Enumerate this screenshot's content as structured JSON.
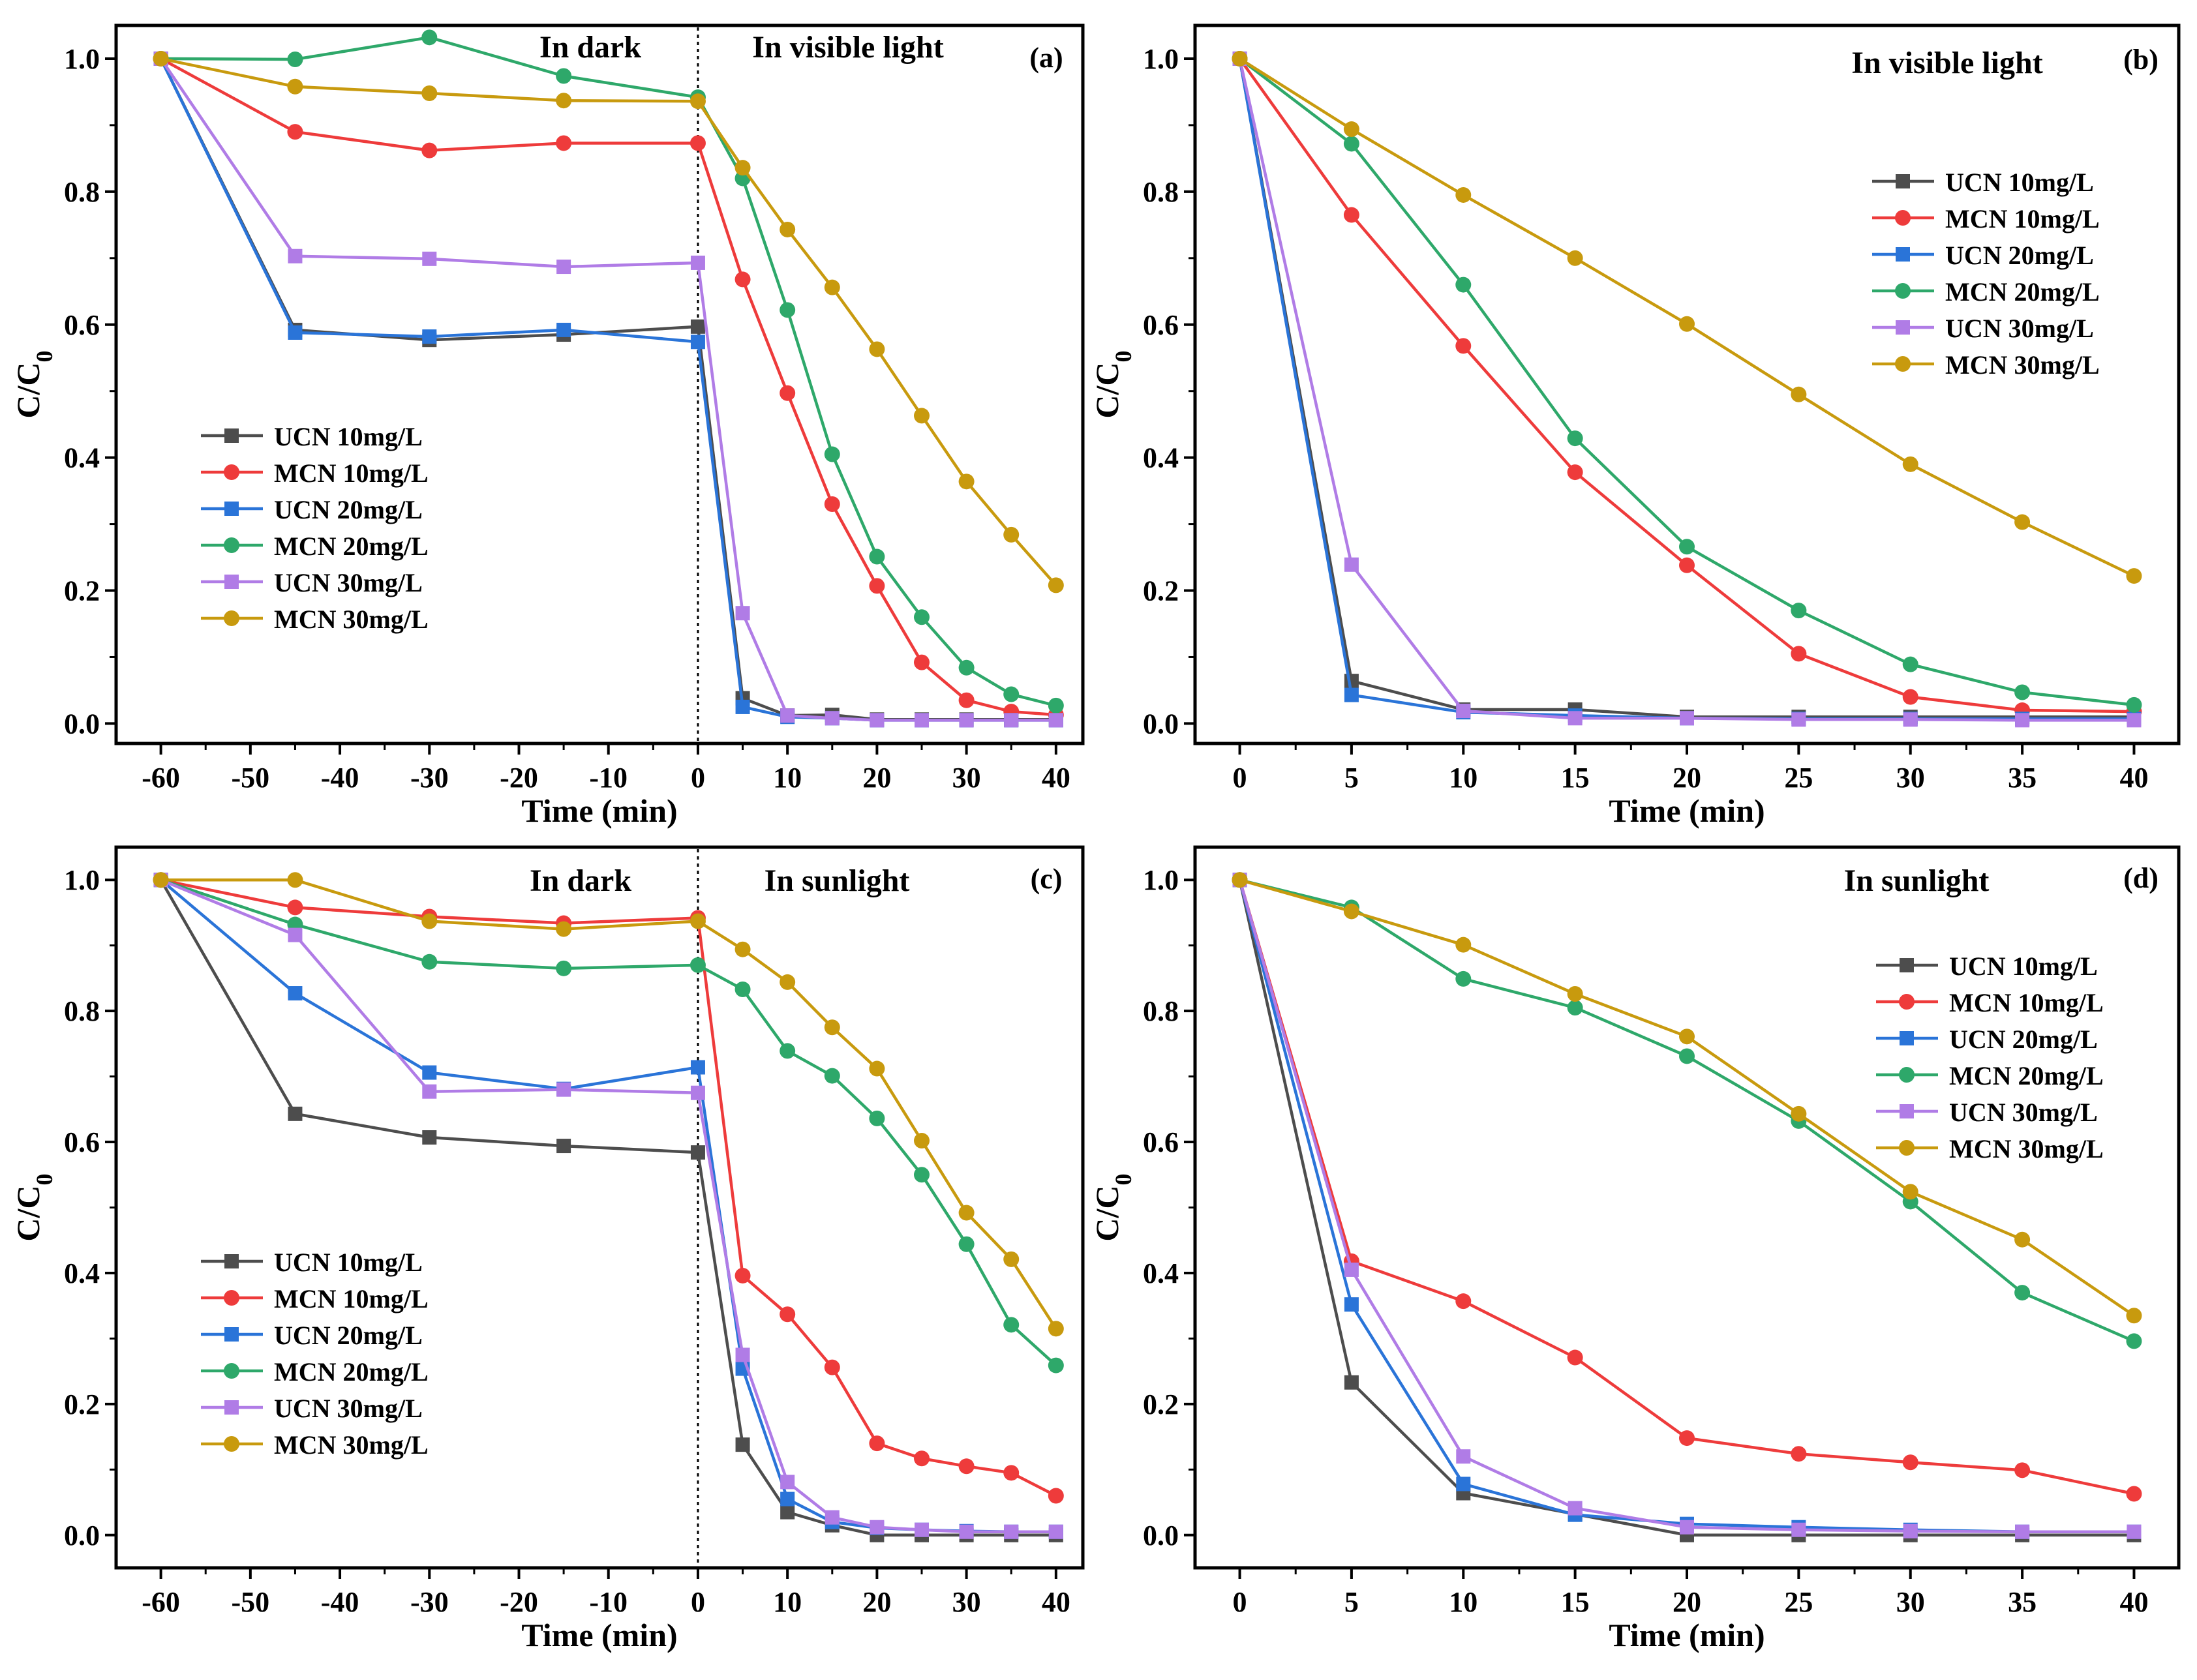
{
  "chart_data": [
    {
      "panel": "(a)",
      "type": "line",
      "x": [
        -60,
        -45,
        -30,
        -15,
        0,
        5,
        10,
        15,
        20,
        25,
        30,
        35,
        40
      ],
      "xlabel": "Time (min)",
      "ylabel_main": "C/C",
      "ylabel_sub": "0",
      "xlim": [
        -65,
        43
      ],
      "ylim": [
        -0.03,
        1.05
      ],
      "xticks": [
        -60,
        -50,
        -40,
        -30,
        -20,
        -10,
        0,
        10,
        20,
        30,
        40
      ],
      "yticks": [
        0.0,
        0.2,
        0.4,
        0.6,
        0.8,
        1.0
      ],
      "xtick_labels": [
        "-60",
        "-50",
        "-40",
        "-30",
        "-20",
        "-10",
        "0",
        "10",
        "20",
        "30",
        "40"
      ],
      "ytick_labels": [
        "0.0",
        "0.2",
        "0.4",
        "0.6",
        "0.8",
        "1.0"
      ],
      "annotations": [
        "In dark",
        "In visible light"
      ],
      "dashed_line_x": 0,
      "legend_position": "center-left",
      "series": [
        {
          "name": "UCN 10mg/L",
          "color": "#4d4d4d",
          "marker": "square",
          "values": [
            1.0,
            0.592,
            0.577,
            0.585,
            0.597,
            0.038,
            0.012,
            0.013,
            0.006,
            0.006,
            0.006,
            0.006,
            0.006
          ]
        },
        {
          "name": "MCN 10mg/L",
          "color": "#ee3b3b",
          "marker": "circle",
          "values": [
            1.0,
            0.89,
            0.862,
            0.873,
            0.873,
            0.668,
            0.497,
            0.33,
            0.207,
            0.092,
            0.035,
            0.018,
            0.013
          ]
        },
        {
          "name": "UCN 20mg/L",
          "color": "#2a74d8",
          "marker": "square",
          "values": [
            1.0,
            0.588,
            0.582,
            0.592,
            0.574,
            0.025,
            0.01,
            0.008,
            0.005,
            0.005,
            0.005,
            0.005,
            0.005
          ]
        },
        {
          "name": "MCN 20mg/L",
          "color": "#2ea86a",
          "marker": "circle",
          "values": [
            1.0,
            0.999,
            1.032,
            0.974,
            0.942,
            0.82,
            0.622,
            0.405,
            0.251,
            0.16,
            0.084,
            0.044,
            0.027
          ]
        },
        {
          "name": "UCN 30mg/L",
          "color": "#b07ce6",
          "marker": "square",
          "values": [
            1.0,
            0.703,
            0.699,
            0.687,
            0.693,
            0.166,
            0.012,
            0.008,
            0.005,
            0.005,
            0.005,
            0.005,
            0.005
          ]
        },
        {
          "name": "MCN 30mg/L",
          "color": "#c89a0e",
          "marker": "circle",
          "values": [
            1.0,
            0.958,
            0.948,
            0.937,
            0.936,
            0.836,
            0.743,
            0.656,
            0.563,
            0.463,
            0.364,
            0.284,
            0.208
          ]
        }
      ]
    },
    {
      "panel": "(b)",
      "type": "line",
      "x": [
        0,
        5,
        10,
        15,
        20,
        25,
        30,
        35,
        40
      ],
      "xlabel": "Time (min)",
      "ylabel_main": "C/C",
      "ylabel_sub": "0",
      "xlim": [
        -2,
        42
      ],
      "ylim": [
        -0.03,
        1.05
      ],
      "xticks": [
        0,
        5,
        10,
        15,
        20,
        25,
        30,
        35,
        40
      ],
      "yticks": [
        0.0,
        0.2,
        0.4,
        0.6,
        0.8,
        1.0
      ],
      "xtick_labels": [
        "0",
        "5",
        "10",
        "15",
        "20",
        "25",
        "30",
        "35",
        "40"
      ],
      "ytick_labels": [
        "0.0",
        "0.2",
        "0.4",
        "0.6",
        "0.8",
        "1.0"
      ],
      "annotations": [
        "In visible light"
      ],
      "legend_position": "top-right",
      "series": [
        {
          "name": "UCN 10mg/L",
          "color": "#4d4d4d",
          "marker": "square",
          "values": [
            1.0,
            0.064,
            0.021,
            0.021,
            0.01,
            0.01,
            0.01,
            0.01,
            0.01
          ]
        },
        {
          "name": "MCN 10mg/L",
          "color": "#ee3b3b",
          "marker": "circle",
          "values": [
            1.0,
            0.765,
            0.568,
            0.378,
            0.238,
            0.105,
            0.04,
            0.02,
            0.018
          ]
        },
        {
          "name": "UCN 20mg/L",
          "color": "#2a74d8",
          "marker": "square",
          "values": [
            1.0,
            0.043,
            0.017,
            0.012,
            0.008,
            0.007,
            0.007,
            0.007,
            0.007
          ]
        },
        {
          "name": "MCN 20mg/L",
          "color": "#2ea86a",
          "marker": "circle",
          "values": [
            1.0,
            0.872,
            0.66,
            0.429,
            0.266,
            0.17,
            0.089,
            0.047,
            0.028
          ]
        },
        {
          "name": "UCN 30mg/L",
          "color": "#b07ce6",
          "marker": "square",
          "values": [
            1.0,
            0.239,
            0.019,
            0.008,
            0.008,
            0.006,
            0.006,
            0.005,
            0.005
          ]
        },
        {
          "name": "MCN 30mg/L",
          "color": "#c89a0e",
          "marker": "circle",
          "values": [
            1.0,
            0.894,
            0.795,
            0.7,
            0.601,
            0.495,
            0.39,
            0.303,
            0.222
          ]
        }
      ]
    },
    {
      "panel": "(c)",
      "type": "line",
      "x": [
        -60,
        -45,
        -30,
        -15,
        0,
        5,
        10,
        15,
        20,
        25,
        30,
        35,
        40
      ],
      "xlabel": "Time (min)",
      "ylabel_main": "C/C",
      "ylabel_sub": "0",
      "xlim": [
        -65,
        43
      ],
      "ylim": [
        -0.05,
        1.05
      ],
      "xticks": [
        -60,
        -50,
        -40,
        -30,
        -20,
        -10,
        0,
        10,
        20,
        30,
        40
      ],
      "yticks": [
        0.0,
        0.2,
        0.4,
        0.6,
        0.8,
        1.0
      ],
      "xtick_labels": [
        "-60",
        "-50",
        "-40",
        "-30",
        "-20",
        "-10",
        "0",
        "10",
        "20",
        "30",
        "40"
      ],
      "ytick_labels": [
        "0.0",
        "0.2",
        "0.4",
        "0.6",
        "0.8",
        "1.0"
      ],
      "annotations": [
        "In dark",
        "In sunlight"
      ],
      "dashed_line_x": 0,
      "legend_position": "bottom-left",
      "series": [
        {
          "name": "UCN 10mg/L",
          "color": "#4d4d4d",
          "marker": "square",
          "values": [
            1.0,
            0.643,
            0.607,
            0.594,
            0.584,
            0.138,
            0.035,
            0.015,
            0.0,
            0.0,
            0.0,
            0.0,
            0.0
          ]
        },
        {
          "name": "MCN 10mg/L",
          "color": "#ee3b3b",
          "marker": "circle",
          "values": [
            1.0,
            0.958,
            0.944,
            0.934,
            0.942,
            0.396,
            0.337,
            0.256,
            0.14,
            0.117,
            0.105,
            0.095,
            0.06
          ]
        },
        {
          "name": "UCN 20mg/L",
          "color": "#2a74d8",
          "marker": "square",
          "values": [
            1.0,
            0.827,
            0.706,
            0.681,
            0.714,
            0.254,
            0.055,
            0.02,
            0.011,
            0.008,
            0.006,
            0.005,
            0.005
          ]
        },
        {
          "name": "MCN 20mg/L",
          "color": "#2ea86a",
          "marker": "circle",
          "values": [
            1.0,
            0.932,
            0.875,
            0.865,
            0.87,
            0.833,
            0.739,
            0.701,
            0.636,
            0.55,
            0.444,
            0.321,
            0.259
          ]
        },
        {
          "name": "UCN 30mg/L",
          "color": "#b07ce6",
          "marker": "square",
          "values": [
            1.0,
            0.916,
            0.677,
            0.68,
            0.675,
            0.275,
            0.081,
            0.027,
            0.012,
            0.008,
            0.005,
            0.005,
            0.005
          ]
        },
        {
          "name": "MCN 30mg/L",
          "color": "#c89a0e",
          "marker": "circle",
          "values": [
            1.0,
            1.0,
            0.937,
            0.925,
            0.937,
            0.894,
            0.844,
            0.775,
            0.712,
            0.602,
            0.492,
            0.421,
            0.315
          ]
        }
      ]
    },
    {
      "panel": "(d)",
      "type": "line",
      "x": [
        0,
        5,
        10,
        15,
        20,
        25,
        30,
        35,
        40
      ],
      "xlabel": "Time (min)",
      "ylabel_main": "C/C",
      "ylabel_sub": "0",
      "xlim": [
        -2,
        42
      ],
      "ylim": [
        -0.05,
        1.05
      ],
      "xticks": [
        0,
        5,
        10,
        15,
        20,
        25,
        30,
        35,
        40
      ],
      "yticks": [
        0.0,
        0.2,
        0.4,
        0.6,
        0.8,
        1.0
      ],
      "xtick_labels": [
        "0",
        "5",
        "10",
        "15",
        "20",
        "25",
        "30",
        "35",
        "40"
      ],
      "ytick_labels": [
        "0.0",
        "0.2",
        "0.4",
        "0.6",
        "0.8",
        "1.0"
      ],
      "annotations": [
        "In sunlight"
      ],
      "legend_position": "top-right",
      "series": [
        {
          "name": "UCN 10mg/L",
          "color": "#4d4d4d",
          "marker": "square",
          "values": [
            1.0,
            0.233,
            0.064,
            0.032,
            0.0,
            0.0,
            0.0,
            0.0,
            0.0
          ]
        },
        {
          "name": "MCN 10mg/L",
          "color": "#ee3b3b",
          "marker": "circle",
          "values": [
            1.0,
            0.418,
            0.357,
            0.271,
            0.148,
            0.124,
            0.111,
            0.099,
            0.063
          ]
        },
        {
          "name": "UCN 20mg/L",
          "color": "#2a74d8",
          "marker": "square",
          "values": [
            1.0,
            0.352,
            0.078,
            0.031,
            0.017,
            0.012,
            0.008,
            0.005,
            0.005
          ]
        },
        {
          "name": "MCN 20mg/L",
          "color": "#2ea86a",
          "marker": "circle",
          "values": [
            1.0,
            0.958,
            0.849,
            0.805,
            0.731,
            0.632,
            0.509,
            0.37,
            0.296
          ]
        },
        {
          "name": "UCN 30mg/L",
          "color": "#b07ce6",
          "marker": "square",
          "values": [
            1.0,
            0.405,
            0.12,
            0.041,
            0.012,
            0.008,
            0.006,
            0.005,
            0.005
          ]
        },
        {
          "name": "MCN 30mg/L",
          "color": "#c89a0e",
          "marker": "circle",
          "values": [
            1.0,
            0.952,
            0.901,
            0.826,
            0.761,
            0.643,
            0.524,
            0.451,
            0.335
          ]
        }
      ]
    }
  ]
}
